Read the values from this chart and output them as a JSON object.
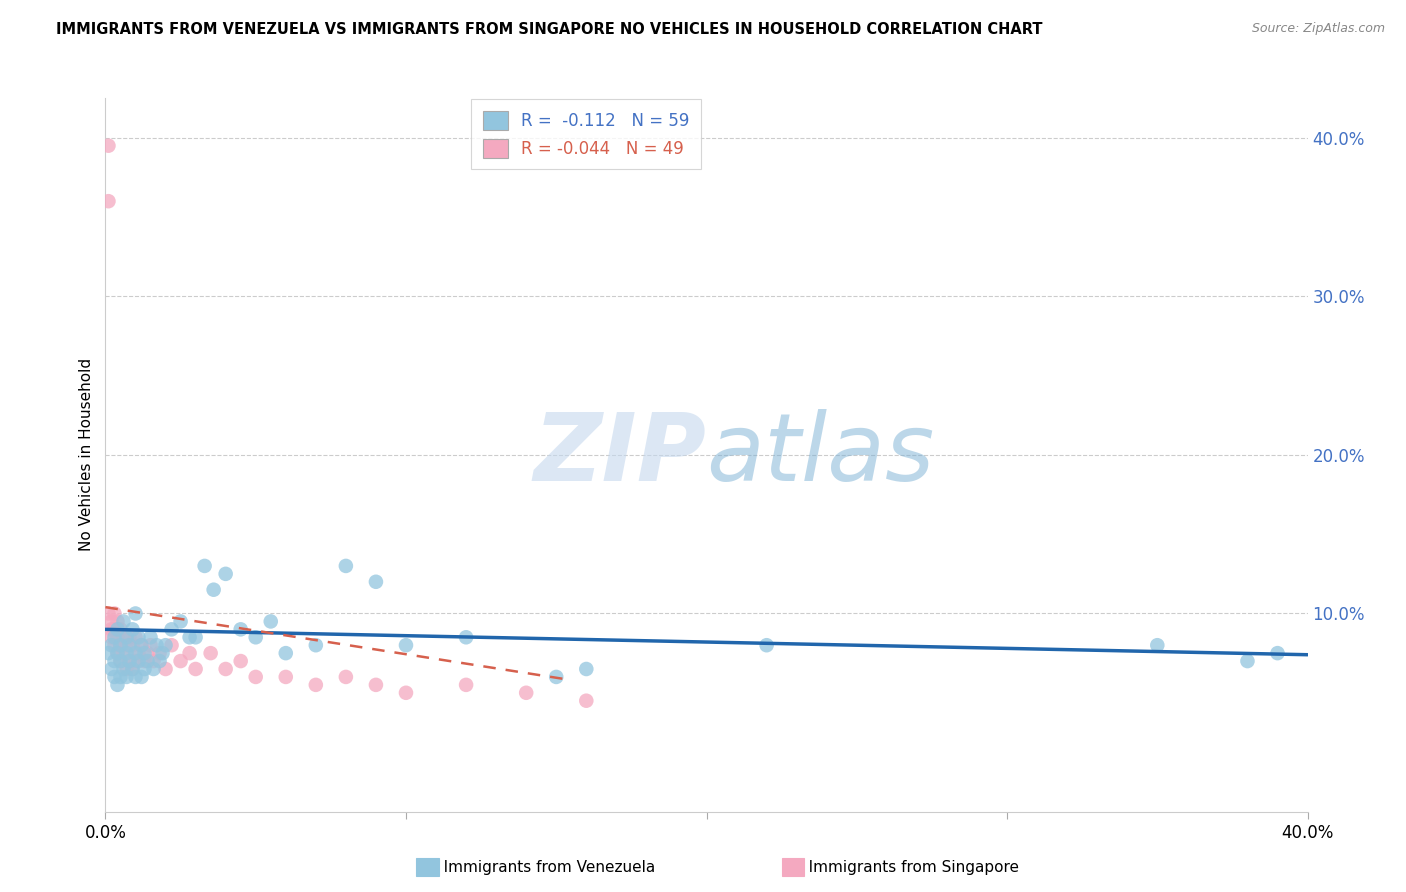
{
  "title": "IMMIGRANTS FROM VENEZUELA VS IMMIGRANTS FROM SINGAPORE NO VEHICLES IN HOUSEHOLD CORRELATION CHART",
  "source": "Source: ZipAtlas.com",
  "ylabel": "No Vehicles in Household",
  "right_yticks": [
    "40.0%",
    "30.0%",
    "20.0%",
    "10.0%"
  ],
  "right_ytick_vals": [
    0.4,
    0.3,
    0.2,
    0.1
  ],
  "xmin": 0.0,
  "xmax": 0.4,
  "ymin": -0.025,
  "ymax": 0.425,
  "legend_R_blue": "-0.112",
  "legend_N_blue": "59",
  "legend_R_pink": "-0.044",
  "legend_N_pink": "49",
  "color_blue": "#92c5de",
  "color_pink": "#f4a9c0",
  "line_color_blue": "#2166ac",
  "line_color_pink": "#d6604d",
  "watermark_zip": "ZIP",
  "watermark_atlas": "atlas",
  "venezuela_x": [
    0.001,
    0.002,
    0.002,
    0.003,
    0.003,
    0.003,
    0.004,
    0.004,
    0.004,
    0.005,
    0.005,
    0.005,
    0.006,
    0.006,
    0.007,
    0.007,
    0.007,
    0.008,
    0.008,
    0.009,
    0.009,
    0.01,
    0.01,
    0.01,
    0.011,
    0.011,
    0.012,
    0.012,
    0.013,
    0.013,
    0.014,
    0.015,
    0.016,
    0.017,
    0.018,
    0.019,
    0.02,
    0.022,
    0.025,
    0.028,
    0.03,
    0.033,
    0.036,
    0.04,
    0.045,
    0.05,
    0.055,
    0.06,
    0.07,
    0.08,
    0.09,
    0.1,
    0.12,
    0.15,
    0.16,
    0.22,
    0.35,
    0.38,
    0.39
  ],
  "venezuela_y": [
    0.075,
    0.065,
    0.08,
    0.06,
    0.07,
    0.085,
    0.055,
    0.075,
    0.09,
    0.06,
    0.07,
    0.08,
    0.065,
    0.095,
    0.06,
    0.075,
    0.085,
    0.07,
    0.08,
    0.065,
    0.09,
    0.06,
    0.075,
    0.1,
    0.07,
    0.085,
    0.06,
    0.08,
    0.065,
    0.075,
    0.07,
    0.085,
    0.065,
    0.08,
    0.07,
    0.075,
    0.08,
    0.09,
    0.095,
    0.085,
    0.085,
    0.13,
    0.115,
    0.125,
    0.09,
    0.085,
    0.095,
    0.075,
    0.08,
    0.13,
    0.12,
    0.08,
    0.085,
    0.06,
    0.065,
    0.08,
    0.08,
    0.07,
    0.075
  ],
  "singapore_x": [
    0.001,
    0.001,
    0.001,
    0.002,
    0.002,
    0.002,
    0.003,
    0.003,
    0.003,
    0.004,
    0.004,
    0.004,
    0.005,
    0.005,
    0.005,
    0.006,
    0.006,
    0.007,
    0.007,
    0.008,
    0.008,
    0.009,
    0.009,
    0.01,
    0.01,
    0.011,
    0.012,
    0.013,
    0.014,
    0.015,
    0.016,
    0.018,
    0.02,
    0.022,
    0.025,
    0.028,
    0.03,
    0.035,
    0.04,
    0.045,
    0.05,
    0.06,
    0.07,
    0.08,
    0.09,
    0.1,
    0.12,
    0.14,
    0.16
  ],
  "singapore_y": [
    0.395,
    0.36,
    0.1,
    0.095,
    0.085,
    0.09,
    0.08,
    0.09,
    0.1,
    0.075,
    0.085,
    0.095,
    0.07,
    0.08,
    0.09,
    0.075,
    0.085,
    0.065,
    0.08,
    0.07,
    0.085,
    0.065,
    0.08,
    0.07,
    0.085,
    0.075,
    0.08,
    0.07,
    0.075,
    0.08,
    0.07,
    0.075,
    0.065,
    0.08,
    0.07,
    0.075,
    0.065,
    0.075,
    0.065,
    0.07,
    0.06,
    0.06,
    0.055,
    0.06,
    0.055,
    0.05,
    0.055,
    0.05,
    0.045
  ],
  "singapore_line_x0": 0.0,
  "singapore_line_x1": 0.155,
  "singapore_line_y0": 0.104,
  "singapore_line_y1": 0.058,
  "venezuela_line_x0": 0.0,
  "venezuela_line_x1": 0.4,
  "venezuela_line_y0": 0.09,
  "venezuela_line_y1": 0.074
}
